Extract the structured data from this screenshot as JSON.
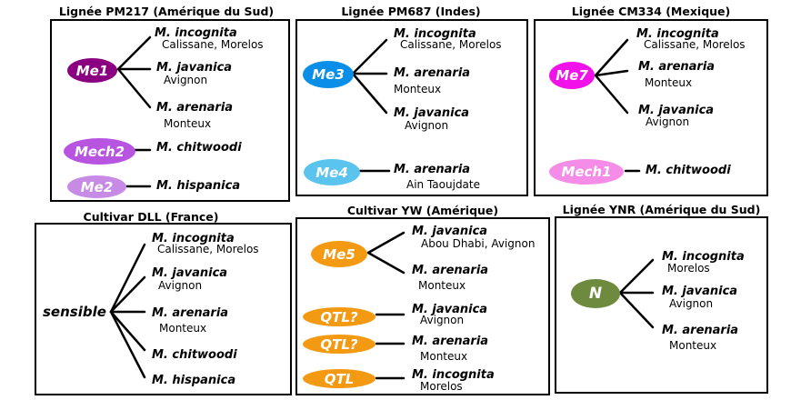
{
  "colors": {
    "me1": "#8B0080",
    "mech2": "#B855E0",
    "me2": "#C78BE6",
    "me3": "#0A8FE8",
    "me4": "#5BC4EE",
    "me7": "#F012E8",
    "mech1": "#F58CE8",
    "me5": "#F39A12",
    "qtl": "#F39A12",
    "n": "#6E8A3E"
  },
  "panels": {
    "pm217": {
      "title": "Lignée PM217 (Amérique du Sud)",
      "genes": [
        "Me1",
        "Mech2",
        "Me2"
      ],
      "species": [
        "M. incognita",
        "M. javanica",
        "M. arenaria",
        "M. chitwoodi",
        "M. hispanica"
      ],
      "locations": [
        "Calissane, Morelos",
        "Avignon",
        "Monteux"
      ]
    },
    "pm687": {
      "title": "Lignée PM687 (Indes)",
      "genes": [
        "Me3",
        "Me4"
      ],
      "species": [
        "M. incognita",
        "M. arenaria",
        "M. javanica",
        "M. arenaria"
      ],
      "locations": [
        "Calissane, Morelos",
        "Monteux",
        "Avignon",
        "Ain Taoujdate"
      ]
    },
    "cm334": {
      "title": "Lignée CM334 (Mexique)",
      "genes": [
        "Me7",
        "Mech1"
      ],
      "species": [
        "M. incognita",
        "M. arenaria",
        "M. javanica",
        "M. chitwoodi"
      ],
      "locations": [
        "Calissane, Morelos",
        "Monteux",
        "Avignon"
      ]
    },
    "dll": {
      "title": "Cultivar DLL (France)",
      "label": "sensible",
      "species": [
        "M. incognita",
        "M. javanica",
        "M. arenaria",
        "M. chitwoodi",
        "M. hispanica"
      ],
      "locations": [
        "Calissane, Morelos",
        "Avignon",
        "Monteux"
      ]
    },
    "yw": {
      "title": "Cultivar YW (Amérique)",
      "genes": [
        "Me5",
        "QTL?",
        "QTL?",
        "QTL"
      ],
      "species": [
        "M. javanica",
        "M. arenaria",
        "M. javanica",
        "M. arenaria",
        "M. incognita"
      ],
      "locations": [
        "Abou Dhabi, Avignon",
        "Monteux",
        "Avignon",
        "Monteux",
        "Morelos"
      ]
    },
    "ynr": {
      "title": "Lignée YNR (Amérique du Sud)",
      "genes": [
        "N"
      ],
      "species": [
        "M. incognita",
        "M. javanica",
        "M. arenaria"
      ],
      "locations": [
        "Morelos",
        "Avignon",
        "Monteux"
      ]
    }
  }
}
